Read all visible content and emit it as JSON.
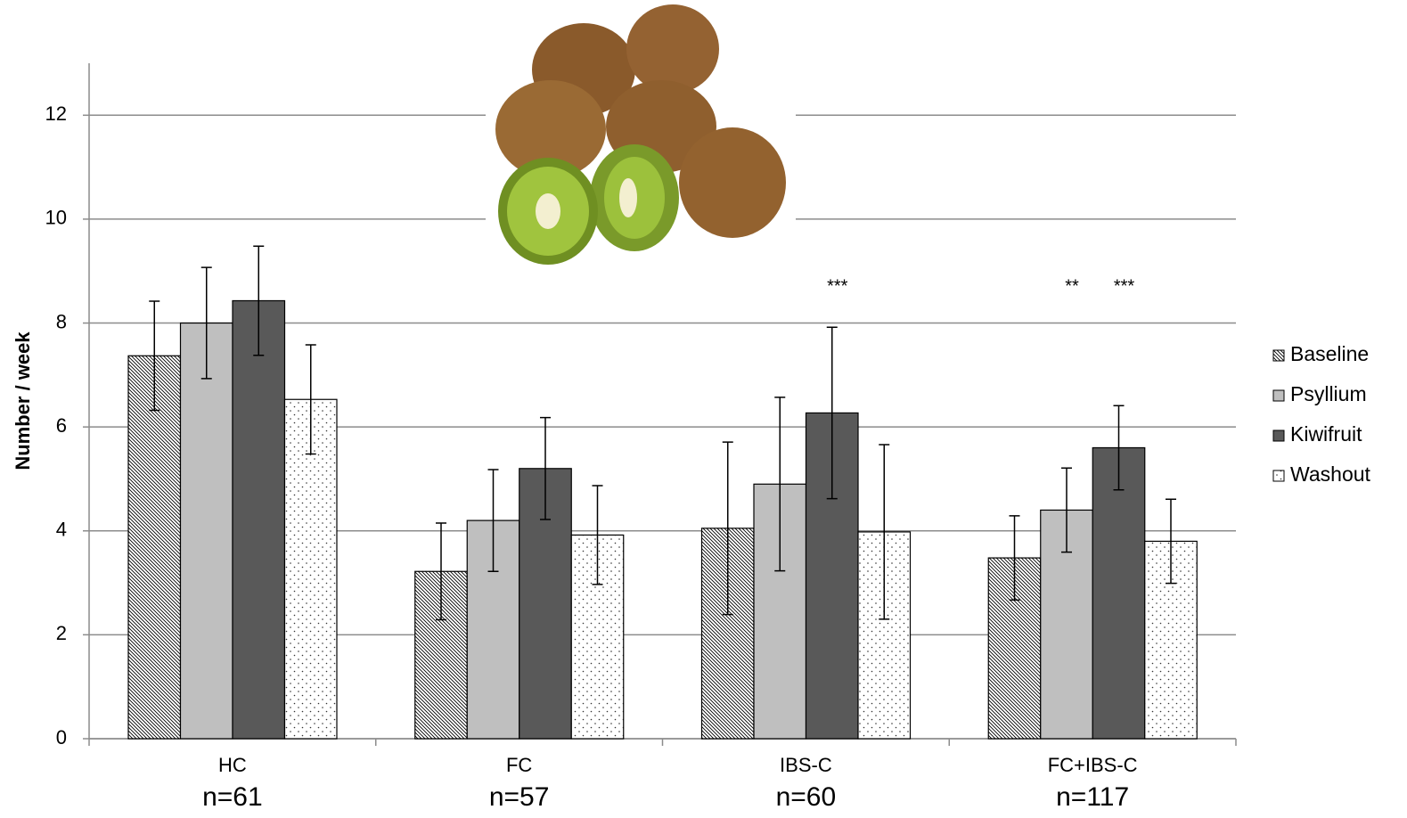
{
  "chart_data": {
    "type": "bar",
    "y_label": "Number / week",
    "categories": [
      "HC",
      "FC",
      "IBS-C",
      "FC+IBS-C"
    ],
    "sample_sizes": [
      "n=61",
      "n=57",
      "n=60",
      "n=117"
    ],
    "ylim": [
      0,
      13
    ],
    "yticks": [
      0,
      2,
      4,
      6,
      8,
      10,
      12
    ],
    "grid": true,
    "legend": "right",
    "series": [
      {
        "name": "Baseline",
        "color": "#ffffff",
        "pattern": "diagonal",
        "values": [
          7.37,
          3.22,
          4.05,
          3.48
        ],
        "errors": [
          1.05,
          0.93,
          1.66,
          0.81
        ]
      },
      {
        "name": "Psyllium",
        "color": "#bfbfbf",
        "values": [
          8.0,
          4.2,
          4.9,
          4.4
        ],
        "errors": [
          1.07,
          0.98,
          1.67,
          0.81
        ],
        "annotations": [
          null,
          null,
          null,
          "**"
        ]
      },
      {
        "name": "Kiwifruit",
        "color": "#595959",
        "values": [
          8.43,
          5.2,
          6.27,
          5.6
        ],
        "errors": [
          1.05,
          0.98,
          1.65,
          0.81
        ],
        "annotations": [
          null,
          null,
          "***",
          "***"
        ]
      },
      {
        "name": "Washout",
        "color": "#ffffff",
        "pattern": "dots",
        "values": [
          6.53,
          3.92,
          3.98,
          3.8
        ],
        "errors": [
          1.05,
          0.95,
          1.68,
          0.81
        ]
      }
    ]
  }
}
